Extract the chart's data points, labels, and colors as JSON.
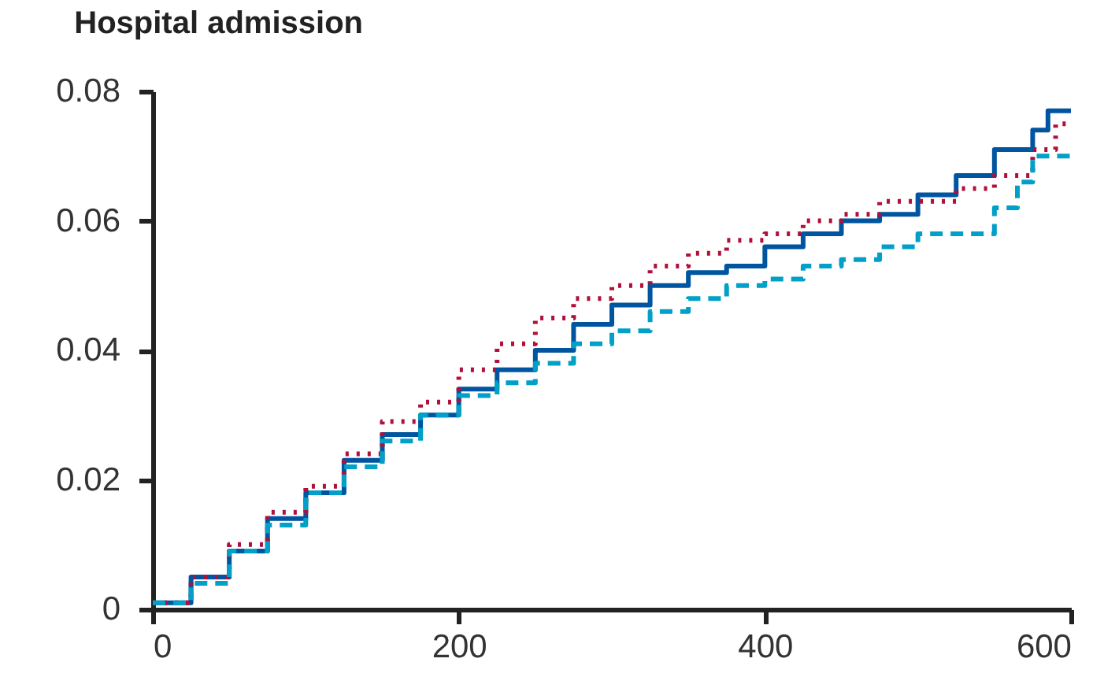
{
  "chart_data": {
    "type": "step",
    "title": "Hospital admission",
    "xlim": [
      0,
      600
    ],
    "xticks": [
      0,
      200,
      400,
      600
    ],
    "ylim": [
      0,
      0.08
    ],
    "yticks": [
      0,
      0.02,
      0.04,
      0.06,
      0.08
    ],
    "grid": false,
    "x": [
      0,
      25,
      50,
      75,
      100,
      125,
      150,
      175,
      200,
      225,
      250,
      275,
      300,
      325,
      350,
      375,
      400,
      425,
      450,
      475,
      500,
      525,
      550,
      575,
      585,
      600
    ],
    "series": [
      {
        "color": "#0055a0",
        "line_style": "solid",
        "values": [
          0.001,
          0.005,
          0.009,
          0.014,
          0.018,
          0.023,
          0.027,
          0.03,
          0.034,
          0.037,
          0.04,
          0.044,
          0.047,
          0.05,
          0.052,
          0.053,
          0.056,
          0.058,
          0.06,
          0.061,
          0.064,
          0.067,
          0.071,
          0.074,
          0.077,
          0.077
        ]
      },
      {
        "color": "#b0103a",
        "line_style": "dotted",
        "x": [
          0,
          25,
          50,
          75,
          100,
          125,
          150,
          175,
          200,
          225,
          250,
          275,
          300,
          325,
          350,
          375,
          400,
          425,
          450,
          475,
          500,
          525,
          550,
          575,
          590,
          600
        ],
        "values": [
          0.001,
          0.005,
          0.01,
          0.015,
          0.019,
          0.024,
          0.029,
          0.032,
          0.037,
          0.041,
          0.045,
          0.048,
          0.05,
          0.053,
          0.055,
          0.057,
          0.058,
          0.06,
          0.061,
          0.063,
          0.063,
          0.065,
          0.067,
          0.071,
          0.075,
          0.075
        ]
      },
      {
        "color": "#00a0c8",
        "line_style": "dashed",
        "x": [
          0,
          25,
          50,
          75,
          100,
          125,
          150,
          175,
          200,
          225,
          250,
          275,
          300,
          325,
          350,
          375,
          400,
          425,
          450,
          475,
          500,
          525,
          550,
          565,
          575,
          600
        ],
        "values": [
          0.001,
          0.004,
          0.009,
          0.013,
          0.018,
          0.022,
          0.026,
          0.03,
          0.033,
          0.035,
          0.038,
          0.041,
          0.043,
          0.046,
          0.048,
          0.05,
          0.051,
          0.053,
          0.054,
          0.056,
          0.058,
          0.058,
          0.062,
          0.066,
          0.07,
          0.07
        ]
      }
    ]
  }
}
